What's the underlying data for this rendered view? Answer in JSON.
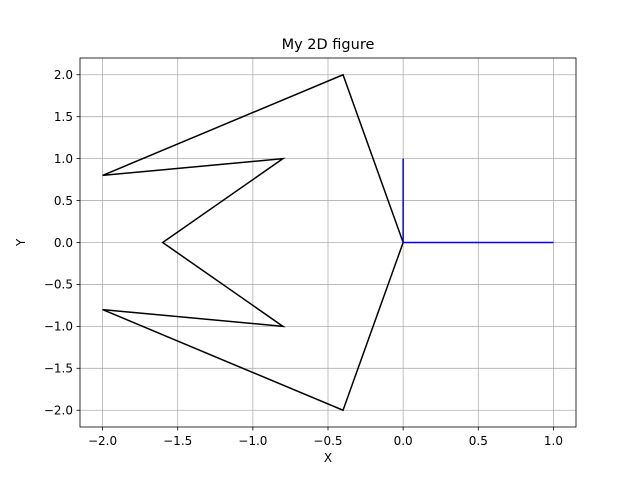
{
  "chart_data": {
    "type": "line",
    "title": "My 2D figure",
    "xlabel": "X",
    "ylabel": "Y",
    "xlim": [
      -2.15,
      1.15
    ],
    "ylim": [
      -2.2,
      2.2
    ],
    "grid": true,
    "xticks": [
      -2.0,
      -1.5,
      -1.0,
      -0.5,
      0.0,
      0.5,
      1.0
    ],
    "xtick_labels": [
      "−2.0",
      "−1.5",
      "−1.0",
      "−0.5",
      "0.0",
      "0.5",
      "1.0"
    ],
    "yticks": [
      -2.0,
      -1.5,
      -1.0,
      -0.5,
      0.0,
      0.5,
      1.0,
      1.5,
      2.0
    ],
    "ytick_labels": [
      "−2.0",
      "−1.5",
      "−1.0",
      "−0.5",
      "0.0",
      "0.5",
      "1.0",
      "1.5",
      "2.0"
    ],
    "series": [
      {
        "color": "#000000",
        "x": [
          0.0,
          -0.4,
          -2.0,
          -0.8,
          -1.6,
          -0.8,
          -2.0,
          -0.4,
          0.0
        ],
        "y": [
          0.0,
          2.0,
          0.8,
          1.0,
          0.0,
          -1.0,
          -0.8,
          -2.0,
          0.0
        ]
      },
      {
        "color": "#0000ff",
        "x": [
          0.0,
          0.0
        ],
        "y": [
          0.0,
          1.0
        ]
      },
      {
        "color": "#0000ff",
        "x": [
          0.0,
          1.0
        ],
        "y": [
          0.0,
          0.0
        ]
      }
    ]
  }
}
